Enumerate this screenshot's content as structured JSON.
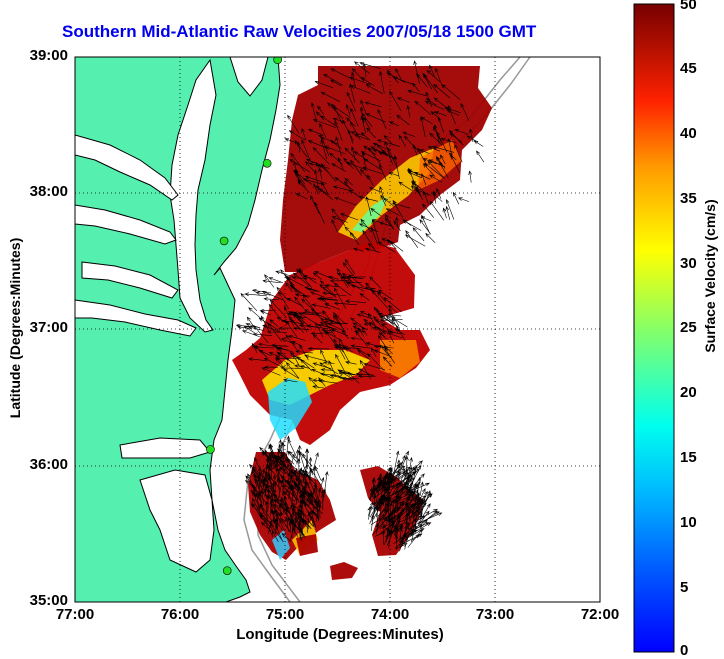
{
  "title": "Southern Mid-Atlantic Raw Velocities 2007/05/18 1500 GMT",
  "axes": {
    "xlabel": "Longitude (Degrees:Minutes)",
    "ylabel": "Latitude (Degrees:Minutes)",
    "xticks": [
      "77:00",
      "76:00",
      "75:00",
      "74:00",
      "73:00",
      "72:00"
    ],
    "yticks": [
      "39:00",
      "38:00",
      "37:00",
      "36:00",
      "35:00"
    ],
    "xlim": [
      -77,
      -72
    ],
    "ylim": [
      35,
      39
    ],
    "grid": "dotted"
  },
  "colorbar": {
    "label": "Surface Velocity (cm/s)",
    "min": 0,
    "max": 50,
    "ticks": [
      "50",
      "45",
      "40",
      "35",
      "30",
      "25",
      "20",
      "15",
      "10",
      "5",
      "0"
    ],
    "colormap": "jet"
  },
  "colors": {
    "land": "#55f0b0",
    "ocean": "#ffffff",
    "coastline": "#000000",
    "isobath": "#999999",
    "station": "#22dd22"
  },
  "stations": [
    {
      "lon": -75.07,
      "lat": 38.98
    },
    {
      "lon": -75.17,
      "lat": 38.22
    },
    {
      "lon": -75.58,
      "lat": 37.65
    },
    {
      "lon": -75.71,
      "lat": 36.12
    },
    {
      "lon": -75.55,
      "lat": 35.23
    }
  ],
  "regions": [
    {
      "name": "north-lobe",
      "min_speed": 22,
      "max_speed": 50
    },
    {
      "name": "middle-lobe",
      "min_speed": 10,
      "max_speed": 50
    },
    {
      "name": "south-lobe",
      "min_speed": 12,
      "max_speed": 50
    }
  ]
}
